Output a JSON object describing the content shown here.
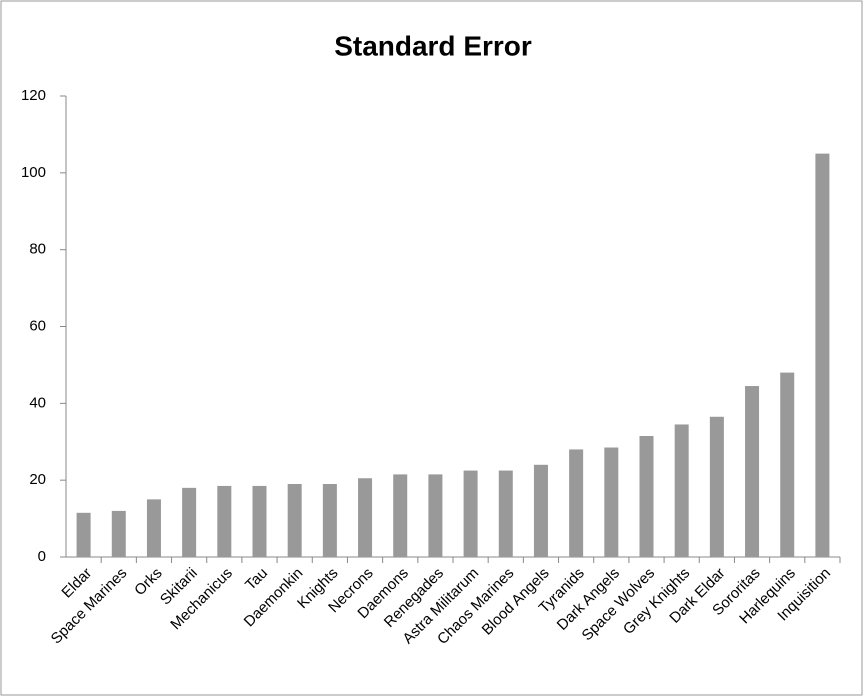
{
  "chart_data": {
    "type": "bar",
    "title": "Standard Error",
    "categories": [
      "Eldar",
      "Space Marines",
      "Orks",
      "Skitarii",
      "Mechanicus",
      "Tau",
      "Daemonkin",
      "Knights",
      "Necrons",
      "Daemons",
      "Renegades",
      "Astra Militarum",
      "Chaos Marines",
      "Blood Angels",
      "Tyranids",
      "Dark Angels",
      "Space Wolves",
      "Grey Knights",
      "Dark Eldar",
      "Sororitas",
      "Harlequins",
      "Inquisition"
    ],
    "values": [
      11.5,
      12,
      15,
      18,
      18.5,
      18.5,
      19,
      19,
      20.5,
      21.5,
      21.5,
      22.5,
      22.5,
      24,
      28,
      28.5,
      31.5,
      34.5,
      36.5,
      44.5,
      48,
      105
    ],
    "color": "#999999",
    "ylim": [
      0,
      120
    ],
    "yticks": [
      0,
      20,
      40,
      60,
      80,
      100,
      120
    ],
    "grid": false
  }
}
